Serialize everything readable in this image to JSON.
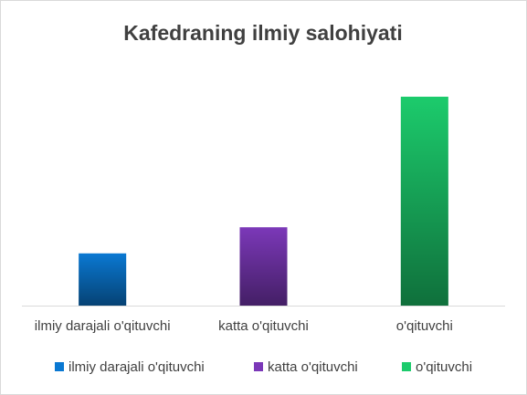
{
  "chart_data": {
    "type": "bar",
    "title": "Kafedraning ilmiy salohiyati",
    "categories": [
      "ilmiy darajali o'qituvchi",
      "katta o'qituvchi",
      "o'qituvchi"
    ],
    "values": [
      4,
      6,
      16
    ],
    "colors": [
      "#0a78d2",
      "#7b38b8",
      "#1ccb6c"
    ]
  }
}
